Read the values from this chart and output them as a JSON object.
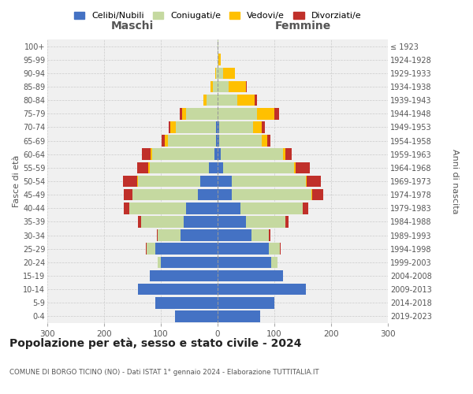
{
  "age_groups": [
    "0-4",
    "5-9",
    "10-14",
    "15-19",
    "20-24",
    "25-29",
    "30-34",
    "35-39",
    "40-44",
    "45-49",
    "50-54",
    "55-59",
    "60-64",
    "65-69",
    "70-74",
    "75-79",
    "80-84",
    "85-89",
    "90-94",
    "95-99",
    "100+"
  ],
  "birth_years": [
    "2019-2023",
    "2014-2018",
    "2009-2013",
    "2004-2008",
    "1999-2003",
    "1994-1998",
    "1989-1993",
    "1984-1988",
    "1979-1983",
    "1974-1978",
    "1969-1973",
    "1964-1968",
    "1959-1963",
    "1954-1958",
    "1949-1953",
    "1944-1948",
    "1939-1943",
    "1934-1938",
    "1929-1933",
    "1924-1928",
    "≤ 1923"
  ],
  "males": {
    "celibe": [
      75,
      110,
      140,
      120,
      100,
      110,
      65,
      60,
      55,
      35,
      30,
      15,
      5,
      3,
      3,
      0,
      0,
      0,
      0,
      0,
      0
    ],
    "coniugato": [
      0,
      0,
      0,
      0,
      5,
      15,
      40,
      75,
      100,
      115,
      110,
      105,
      110,
      85,
      70,
      55,
      20,
      8,
      3,
      0,
      0
    ],
    "vedovo": [
      0,
      0,
      0,
      0,
      0,
      0,
      0,
      0,
      0,
      0,
      1,
      2,
      3,
      5,
      10,
      8,
      5,
      5,
      1,
      0,
      0
    ],
    "divorziato": [
      0,
      0,
      0,
      0,
      0,
      1,
      2,
      5,
      10,
      15,
      25,
      20,
      15,
      5,
      3,
      3,
      0,
      0,
      0,
      0,
      0
    ]
  },
  "females": {
    "nubile": [
      75,
      100,
      155,
      115,
      95,
      90,
      60,
      50,
      40,
      25,
      25,
      10,
      5,
      3,
      3,
      0,
      0,
      0,
      0,
      0,
      0
    ],
    "coniugata": [
      0,
      0,
      0,
      0,
      10,
      20,
      30,
      70,
      110,
      140,
      130,
      125,
      110,
      75,
      60,
      70,
      35,
      20,
      10,
      2,
      1
    ],
    "vedova": [
      0,
      0,
      0,
      0,
      0,
      0,
      0,
      0,
      0,
      1,
      2,
      3,
      5,
      10,
      15,
      30,
      30,
      30,
      20,
      3,
      1
    ],
    "divorziata": [
      0,
      0,
      0,
      0,
      0,
      1,
      3,
      5,
      10,
      20,
      25,
      25,
      10,
      5,
      5,
      8,
      5,
      2,
      0,
      0,
      0
    ]
  },
  "colors": {
    "celibe": "#4472c4",
    "coniugato": "#c5d9a0",
    "vedovo": "#ffc000",
    "divorziato": "#c0302a"
  },
  "legend_labels": [
    "Celibi/Nubili",
    "Coniugati/e",
    "Vedovi/e",
    "Divorziati/e"
  ],
  "title": "Popolazione per età, sesso e stato civile - 2024",
  "subtitle": "COMUNE DI BORGO TICINO (NO) - Dati ISTAT 1° gennaio 2024 - Elaborazione TUTTITALIA.IT",
  "ylabel_left": "Fasce di età",
  "ylabel_right": "Anni di nascita",
  "xlabel_left": "Maschi",
  "xlabel_right": "Femmine",
  "xlim": 300,
  "bg_color": "#f0f0f0",
  "grid_color": "#cccccc"
}
